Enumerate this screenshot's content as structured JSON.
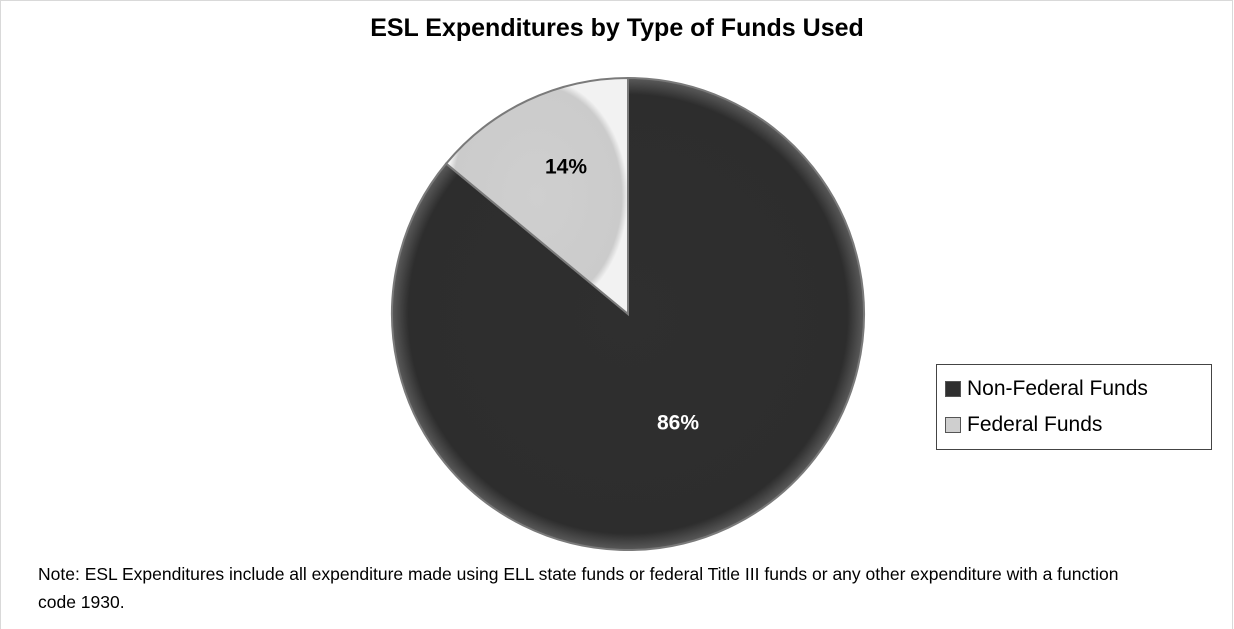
{
  "chart_data": {
    "type": "pie",
    "title": "ESL Expenditures by Type of Funds Used",
    "slices": [
      {
        "name": "Non-Federal Funds",
        "value": 86,
        "label": "86%",
        "color": "#2f2f2f",
        "label_color": "#ffffff"
      },
      {
        "name": "Federal Funds",
        "value": 14,
        "label": "14%",
        "color": "#cfcfcf",
        "label_color": "#000000"
      }
    ],
    "legend_position": "right"
  },
  "note": "Note: ESL Expenditures include all expenditure made using ELL state funds or federal Title III funds or any other expenditure with a function code 1930."
}
